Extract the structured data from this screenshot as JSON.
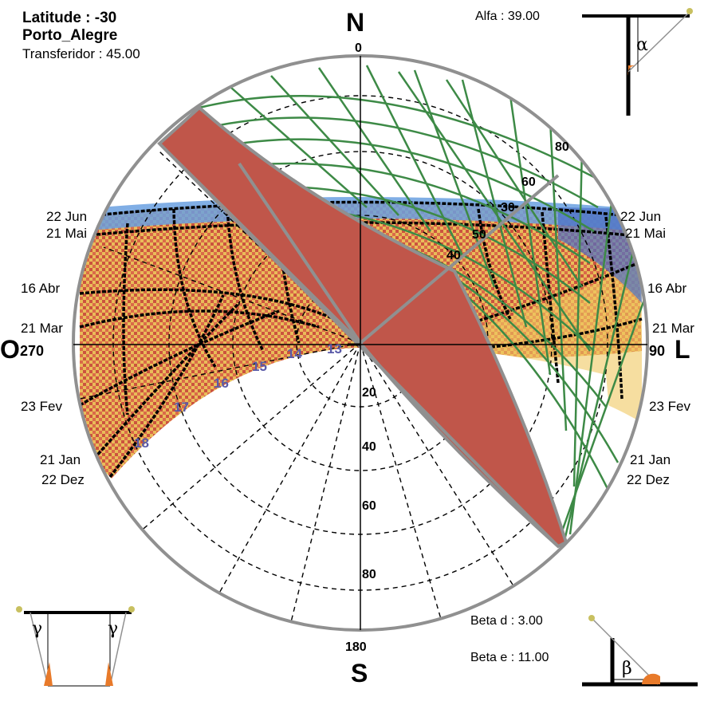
{
  "info": {
    "latitude": "Latitude :  -30",
    "city": "Porto_Alegre",
    "transferidor": "Transferidor : 45.00"
  },
  "angles": {
    "alfa": "Alfa : 39.00",
    "beta_d": "Beta d : 3.00",
    "beta_e": "Beta e : 11.00",
    "alpha_symbol": "α",
    "beta_symbol": "β",
    "gamma_symbol": "γ"
  },
  "compass": {
    "north": "N",
    "north_deg": "0",
    "south": "S",
    "south_deg": "180",
    "west": "O",
    "west_deg": "270",
    "east": "L",
    "east_deg": "90"
  },
  "dates": {
    "left": [
      "22 Jun",
      "21 Mai",
      "16 Abr",
      "21 Mar",
      "23 Fev",
      "21 Jan",
      "22 Dez"
    ],
    "right": [
      "22 Jun",
      "21 Mai",
      "16 Abr",
      "21 Mar",
      "23 Fev",
      "21 Jan",
      "22 Dez"
    ]
  },
  "hours": [
    "13",
    "14",
    "15",
    "16",
    "17",
    "18"
  ],
  "altitude_rings": [
    "20",
    "40",
    "60",
    "80"
  ],
  "protractor_labels": [
    "80",
    "60",
    "50",
    "40",
    "30"
  ],
  "colors": {
    "circle": "#909090",
    "shade": "#c0564a",
    "grid_green": "#3d8a46",
    "sun_red": "#c0422a",
    "sun_yellow": "#e8b840",
    "sun_blue": "#4a7fd0",
    "hour_label": "#5a5aa8",
    "marker": "#e87a2a"
  }
}
